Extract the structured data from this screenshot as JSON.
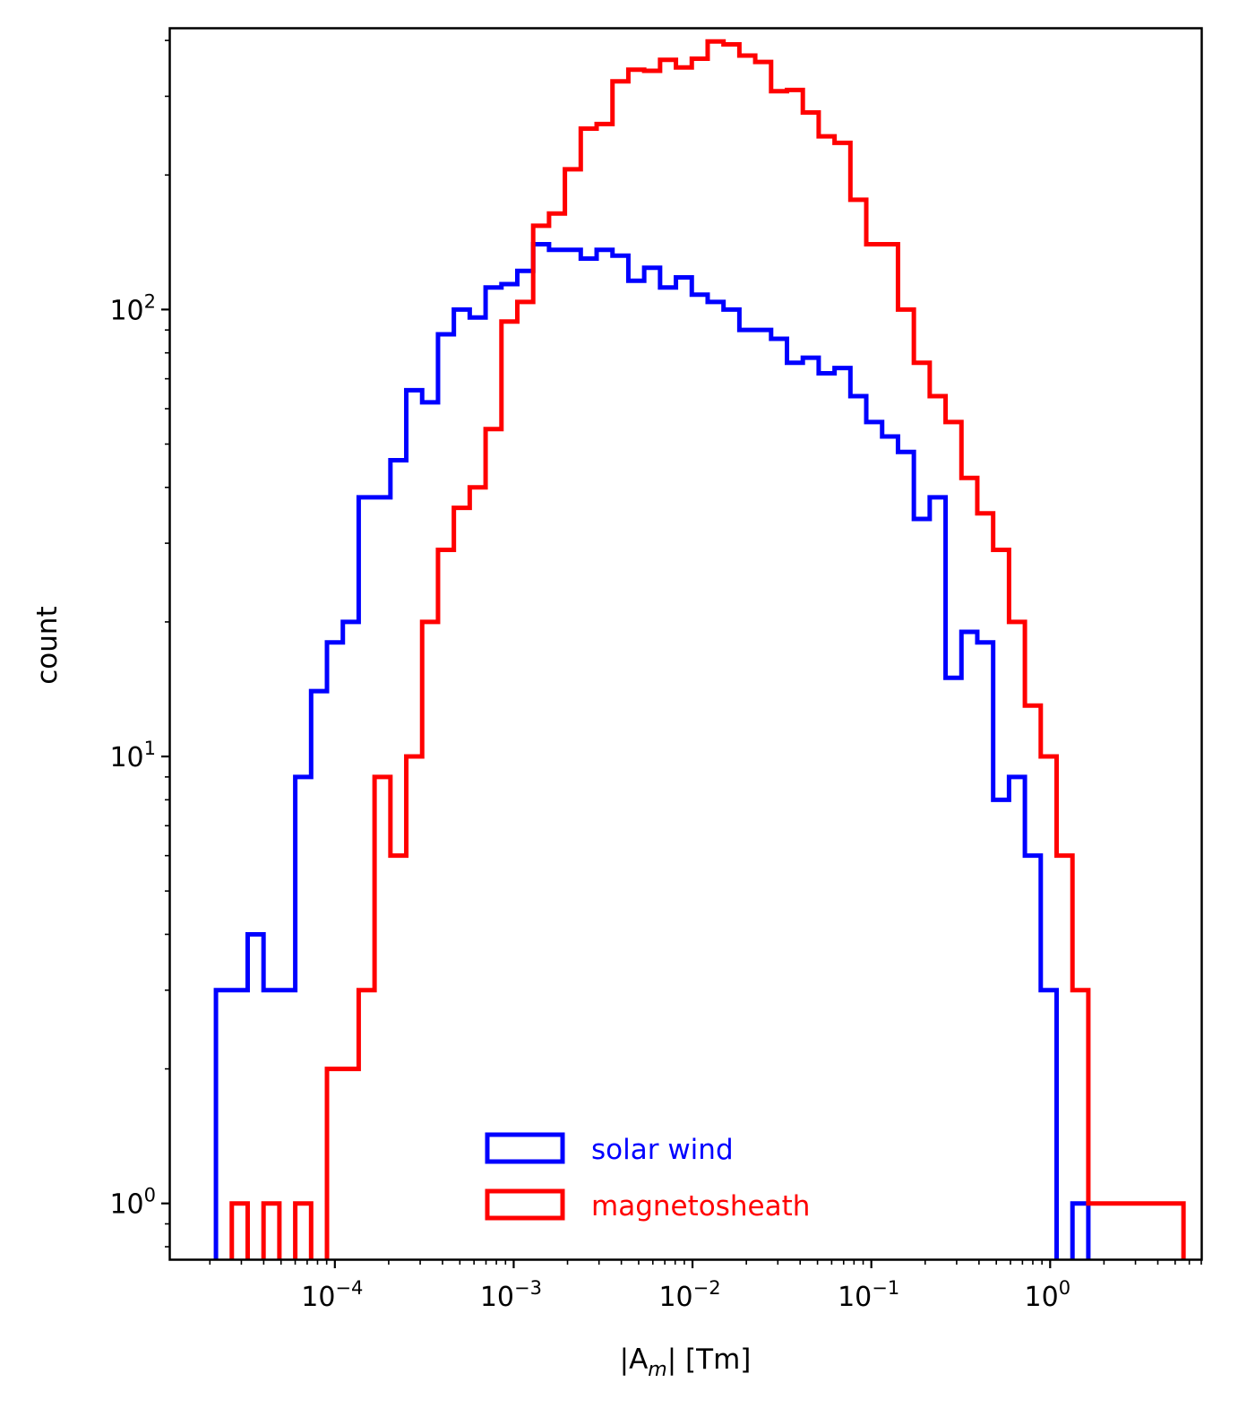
{
  "chart_data": {
    "type": "histogram",
    "xscale": "log",
    "yscale": "log",
    "xlim": [
      1.2e-05,
      7.0
    ],
    "ylim": [
      0.75,
      425
    ],
    "xlabel": "|A_m| [Tm]",
    "xlabel_main": "|A",
    "xlabel_sub": "m",
    "xlabel_tail": "| [Tm]",
    "ylabel": "count",
    "bins": {
      "log10_start": -4.665,
      "log10_step": 0.0887
    },
    "x_ticks": [
      {
        "value": 0.0001,
        "base": "10",
        "exp": "−4"
      },
      {
        "value": 0.001,
        "base": "10",
        "exp": "−3"
      },
      {
        "value": 0.01,
        "base": "10",
        "exp": "−2"
      },
      {
        "value": 0.1,
        "base": "10",
        "exp": "−1"
      },
      {
        "value": 1,
        "base": "10",
        "exp": "0"
      }
    ],
    "y_ticks": [
      {
        "value": 1,
        "base": "10",
        "exp": "0"
      },
      {
        "value": 10,
        "base": "10",
        "exp": "1"
      },
      {
        "value": 100,
        "base": "10",
        "exp": "2"
      }
    ],
    "legend": {
      "position": "lower center"
    },
    "series": [
      {
        "name": "solar wind",
        "color": "#0000ff",
        "counts": [
          3,
          3,
          4,
          3,
          3,
          9,
          14,
          18,
          20,
          38,
          38,
          46,
          66,
          62,
          88,
          100,
          96,
          112,
          114,
          122,
          140,
          136,
          136,
          130,
          136,
          132,
          116,
          124,
          112,
          118,
          108,
          104,
          100,
          90,
          90,
          86,
          76,
          78,
          72,
          74,
          64,
          56,
          52,
          48,
          34,
          38,
          15,
          19,
          18,
          8,
          9,
          6,
          3,
          0,
          1,
          0
        ]
      },
      {
        "name": "magnetosheath",
        "color": "#ff0000",
        "counts": [
          0,
          1,
          0,
          1,
          0,
          1,
          0,
          2,
          2,
          3,
          9,
          6,
          10,
          20,
          29,
          36,
          40,
          54,
          94,
          104,
          154,
          164,
          206,
          254,
          260,
          324,
          344,
          342,
          362,
          348,
          364,
          398,
          392,
          370,
          358,
          308,
          310,
          276,
          244,
          236,
          176,
          140,
          140,
          100,
          76,
          64,
          56,
          42,
          35,
          29,
          20,
          13,
          10,
          6,
          3,
          1,
          1,
          1,
          1,
          1,
          1
        ]
      }
    ]
  }
}
